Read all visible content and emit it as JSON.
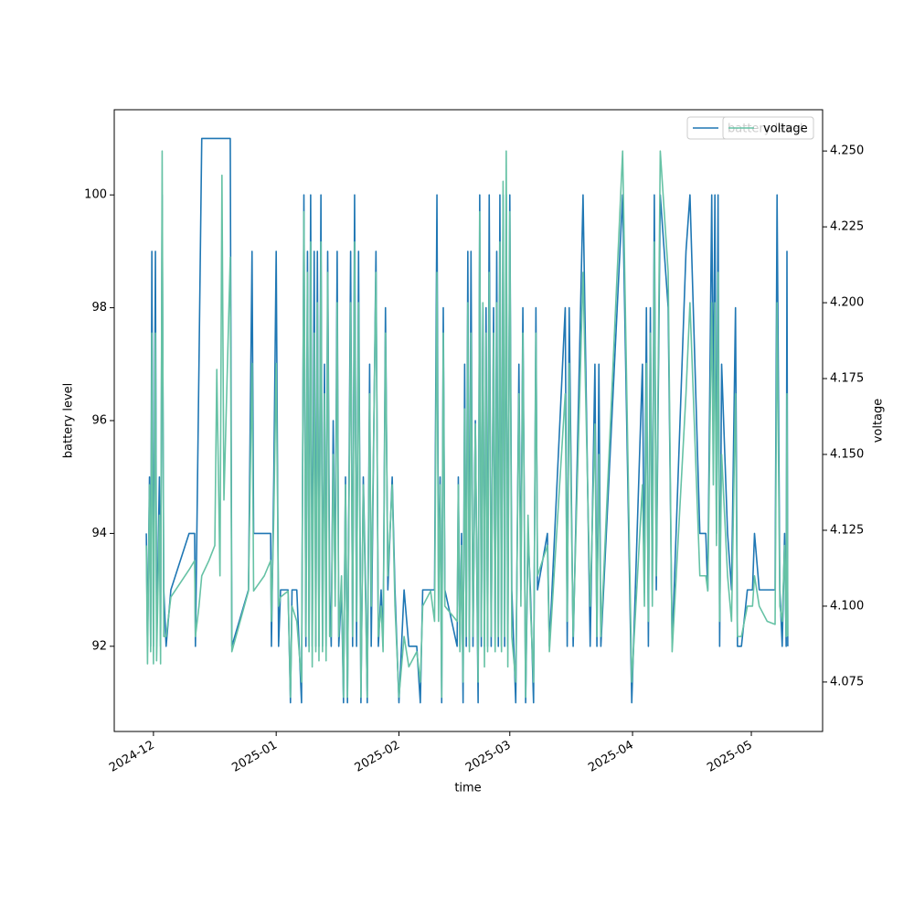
{
  "chart_data": {
    "type": "line",
    "xlabel": "time",
    "ylabel": "battery level",
    "y2label": "voltage",
    "x": [
      20056.2,
      20056.5,
      20057.0,
      20057.3,
      20057.6,
      20058.0,
      20058.5,
      20058.8,
      20059.5,
      20059.8,
      20060.2,
      20060.6,
      20061.2,
      20062.4,
      20067.0,
      20068.4,
      20068.6,
      20069.5,
      20070.2,
      20072.0,
      20073.5,
      20074.0,
      20074.8,
      20075.3,
      20075.8,
      20077.4,
      20077.8,
      20082.0,
      20082.9,
      20083.3,
      20086.0,
      20087.6,
      20087.8,
      20088.4,
      20089.0,
      20089.6,
      20090.1,
      20092.0,
      20092.6,
      20093.0,
      20094.2,
      20095.4,
      20096.0,
      20096.5,
      20096.9,
      20097.3,
      20097.7,
      20098.1,
      20098.6,
      20099.0,
      20099.4,
      20099.8,
      20100.3,
      20100.7,
      20101.2,
      20101.6,
      20102.0,
      20102.5,
      20102.9,
      20103.4,
      20103.9,
      20104.4,
      20104.8,
      20105.5,
      20106.0,
      20106.5,
      20107.0,
      20107.8,
      20108.3,
      20108.8,
      20109.3,
      20109.8,
      20110.4,
      20111.0,
      20111.6,
      20112.0,
      20112.6,
      20113.0,
      20114.2,
      20114.8,
      20115.5,
      20116.0,
      20116.6,
      20117.2,
      20118.3,
      20119.0,
      20120.0,
      20121.3,
      20122.5,
      20124.5,
      20125.4,
      20126.0,
      20128.0,
      20129.0,
      20129.6,
      20130.0,
      20130.4,
      20130.8,
      20131.2,
      20131.6,
      20134.7,
      20135.0,
      20135.4,
      20135.8,
      20136.2,
      20136.6,
      20137.0,
      20137.4,
      20137.8,
      20138.2,
      20138.7,
      20139.3,
      20140.0,
      20140.4,
      20140.8,
      20141.2,
      20141.6,
      20142.0,
      20142.4,
      20142.8,
      20143.3,
      20143.9,
      20144.3,
      20144.7,
      20145.1,
      20145.5,
      20145.9,
      20146.3,
      20146.7,
      20147.1,
      20147.5,
      20148.0,
      20148.5,
      20149.5,
      20150.3,
      20150.8,
      20151.3,
      20152.0,
      20152.6,
      20153.2,
      20154.0,
      20154.6,
      20155.0,
      20157.5,
      20158.0,
      20162.0,
      20162.5,
      20163.0,
      20164.0,
      20166.5,
      20168.3,
      20169.5,
      20170.0,
      20170.5,
      20171.0,
      20176.5,
      20178.8,
      20181.5,
      20182.0,
      20182.5,
      20183.0,
      20183.5,
      20184.0,
      20184.5,
      20185.0,
      20186.0,
      20188.0,
      20189.0,
      20192.5,
      20193.5,
      20196.0,
      20197.5,
      20198.0,
      20199.0,
      20199.4,
      20199.8,
      20200.2,
      20200.6,
      20201.0,
      20201.5,
      20203.0,
      20204.0,
      20205.0,
      20205.5,
      20206.5,
      20208.0,
      20209.3,
      20209.8,
      20211.0,
      20213.0,
      20215.0,
      20215.5,
      20216.2,
      20216.8,
      20217.4,
      20217.8,
      20218.0,
      20218.2
    ],
    "series": [
      {
        "name": "battery level",
        "color": "#1f77b4",
        "values": [
          94,
          92,
          95,
          92,
          99,
          92,
          99,
          92,
          95,
          92,
          100,
          93,
          92,
          93,
          94,
          94,
          92,
          97,
          101,
          101,
          101,
          101,
          101,
          101,
          101,
          101,
          92,
          93,
          99,
          94,
          94,
          94,
          92,
          95,
          99,
          92,
          93,
          93,
          91,
          93,
          93,
          91,
          100,
          92,
          99,
          92,
          100,
          92,
          99,
          92,
          99,
          92,
          100,
          92,
          97,
          92,
          99,
          93,
          92,
          96,
          93,
          99,
          92,
          93,
          91,
          95,
          91,
          99,
          92,
          100,
          92,
          99,
          91,
          95,
          93,
          91,
          97,
          92,
          99,
          92,
          93,
          92,
          98,
          93,
          95,
          93,
          91,
          93,
          92,
          92,
          91,
          93,
          93,
          93,
          100,
          93,
          95,
          91,
          98,
          93,
          92,
          95,
          92,
          94,
          91,
          97,
          92,
          99,
          92,
          99,
          92,
          96,
          91,
          100,
          92,
          98,
          92,
          98,
          92,
          100,
          92,
          98,
          92,
          99,
          92,
          100,
          92,
          100,
          92,
          100,
          92,
          100,
          93,
          91,
          97,
          93,
          98,
          91,
          94,
          93,
          91,
          98,
          93,
          94,
          92,
          98,
          92,
          98,
          92,
          100,
          92,
          97,
          92,
          97,
          92,
          100,
          91,
          97,
          93,
          98,
          92,
          98,
          93,
          100,
          93,
          100,
          98,
          92,
          99,
          100,
          94,
          94,
          93,
          100,
          96,
          100,
          94,
          100,
          92,
          97,
          94,
          93,
          98,
          92,
          92,
          93,
          93,
          94,
          93,
          93,
          93,
          100,
          93,
          92,
          94,
          92,
          99,
          92
        ]
      },
      {
        "name": "voltage",
        "color": "#66c2a5",
        "axis": "y2",
        "values": [
          4.12,
          4.081,
          4.14,
          4.085,
          4.19,
          4.081,
          4.19,
          4.082,
          4.13,
          4.081,
          4.25,
          4.09,
          4.09,
          4.103,
          4.112,
          4.115,
          4.09,
          4.1,
          4.11,
          4.115,
          4.12,
          4.178,
          4.11,
          4.242,
          4.135,
          4.215,
          4.085,
          4.105,
          4.18,
          4.105,
          4.11,
          4.115,
          4.095,
          4.13,
          4.18,
          4.1,
          4.103,
          4.105,
          4.07,
          4.1,
          4.095,
          4.075,
          4.23,
          4.09,
          4.21,
          4.085,
          4.22,
          4.08,
          4.19,
          4.085,
          4.2,
          4.082,
          4.22,
          4.085,
          4.17,
          4.082,
          4.21,
          4.09,
          4.09,
          4.15,
          4.1,
          4.2,
          4.09,
          4.11,
          4.07,
          4.14,
          4.07,
          4.2,
          4.09,
          4.22,
          4.095,
          4.2,
          4.07,
          4.14,
          4.1,
          4.07,
          4.17,
          4.1,
          4.21,
          4.09,
          4.1,
          4.085,
          4.19,
          4.11,
          4.14,
          4.1,
          4.07,
          4.09,
          4.08,
          4.085,
          4.075,
          4.1,
          4.105,
          4.095,
          4.21,
          4.095,
          4.14,
          4.07,
          4.19,
          4.1,
          4.095,
          4.14,
          4.085,
          4.12,
          4.075,
          4.165,
          4.09,
          4.2,
          4.085,
          4.19,
          4.09,
          4.16,
          4.075,
          4.23,
          4.09,
          4.2,
          4.08,
          4.19,
          4.085,
          4.21,
          4.09,
          4.19,
          4.085,
          4.2,
          4.09,
          4.22,
          4.085,
          4.24,
          4.09,
          4.25,
          4.08,
          4.23,
          4.09,
          4.075,
          4.17,
          4.1,
          4.19,
          4.07,
          4.13,
          4.1,
          4.075,
          4.19,
          4.11,
          4.12,
          4.085,
          4.17,
          4.095,
          4.18,
          4.09,
          4.21,
          4.1,
          4.16,
          4.09,
          4.15,
          4.09,
          4.25,
          4.075,
          4.14,
          4.1,
          4.18,
          4.095,
          4.19,
          4.1,
          4.22,
          4.11,
          4.25,
          4.21,
          4.085,
          4.17,
          4.2,
          4.11,
          4.11,
          4.105,
          4.2,
          4.14,
          4.2,
          4.12,
          4.21,
          4.095,
          4.15,
          4.11,
          4.095,
          4.17,
          4.09,
          4.09,
          4.1,
          4.1,
          4.11,
          4.1,
          4.095,
          4.094,
          4.2,
          4.1,
          4.095,
          4.12,
          4.09,
          4.17,
          4.09
        ]
      }
    ],
    "xlim": [
      20048.1,
      20227.0
    ],
    "xticks": [
      {
        "value": 20058,
        "label": "2024-12"
      },
      {
        "value": 20089,
        "label": "2025-01"
      },
      {
        "value": 20120,
        "label": "2025-02"
      },
      {
        "value": 20148,
        "label": "2025-03"
      },
      {
        "value": 20179,
        "label": "2025-04"
      },
      {
        "value": 20209,
        "label": "2025-05"
      }
    ],
    "ylim": [
      90.49,
      101.51
    ],
    "yticks": [
      92,
      94,
      96,
      98,
      100
    ],
    "y2lim": [
      4.0587,
      4.2636
    ],
    "y2ticks": [
      4.075,
      {
        "value": 4.1,
        "label": "4.100"
      },
      4.125,
      {
        "value": 4.15,
        "label": "4.150"
      },
      4.175,
      {
        "value": 4.2,
        "label": "4.200"
      },
      4.225,
      {
        "value": 4.25,
        "label": "4.250"
      }
    ],
    "legend": "upper right",
    "grid": false
  }
}
